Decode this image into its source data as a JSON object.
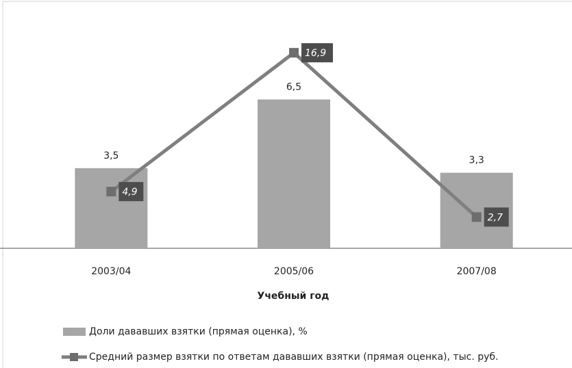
{
  "chart_data": {
    "type": "bar_line",
    "x_label": "Учебный год",
    "categories": [
      "2003/04",
      "2005/06",
      "2007/08"
    ],
    "ylim": [
      0,
      9.5
    ],
    "y2lim": [
      0,
      18.8
    ],
    "series": [
      {
        "name": "Доли дававших взятки (прямая оценка), %",
        "type": "bar",
        "color": "#a6a6a6",
        "values": [
          3.5,
          6.5,
          3.3
        ],
        "value_labels": [
          "3,5",
          "6,5",
          "3,3"
        ]
      },
      {
        "name": "Средний размер взятки по ответам дававших  взятки (прямая оценка), тыс. руб.",
        "type": "line",
        "axis": "y2",
        "color": "#7f7f7f",
        "values": [
          4.9,
          16.9,
          2.7
        ],
        "value_labels": [
          "4,9",
          "16,9",
          "2,7"
        ]
      }
    ]
  }
}
